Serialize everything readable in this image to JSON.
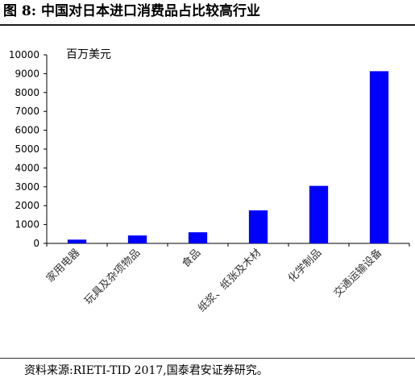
{
  "figure": {
    "title": "图 8:  中国对日本进口消费品占比较高行业",
    "source": "资料来源:RIETI-TID 2017,国泰君安证券研究。"
  },
  "chart_data": {
    "type": "bar",
    "unit_label": "百万美元",
    "categories": [
      "家用电器",
      "玩具及杂项物品",
      "食品",
      "纸浆、纸张及木材",
      "化学制品",
      "交通运输设备"
    ],
    "values": [
      200,
      420,
      590,
      1750,
      3050,
      9130
    ],
    "ylim": [
      0,
      10000
    ],
    "yticks": [
      0,
      1000,
      2000,
      3000,
      4000,
      5000,
      6000,
      7000,
      8000,
      9000,
      10000
    ],
    "bar_color": "#0000ff",
    "grid": false,
    "legend": "none"
  }
}
